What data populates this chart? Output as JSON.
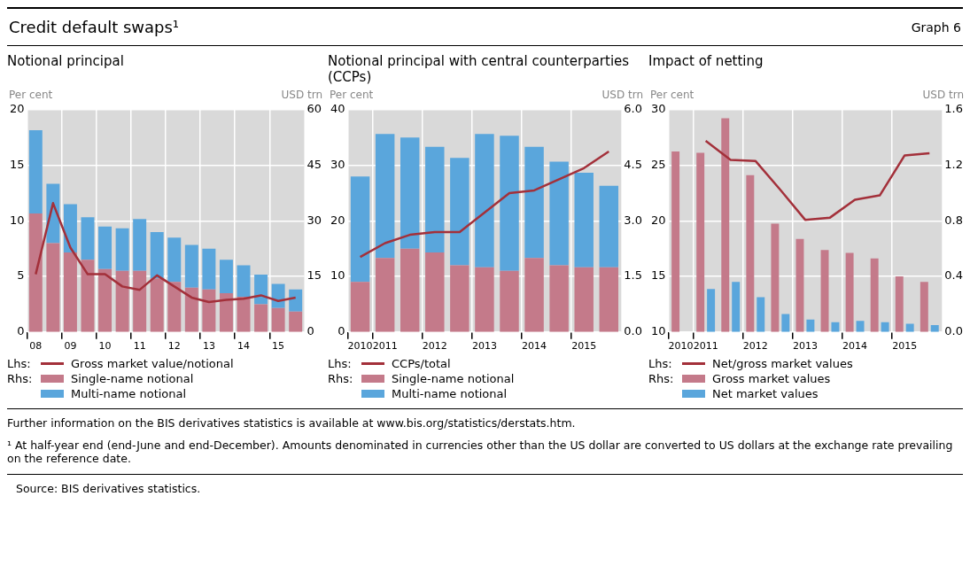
{
  "chart_data": [
    {
      "type": "other",
      "title": "Credit default swaps¹",
      "annotations": [
        "Graph 6"
      ]
    },
    {
      "type": "bar",
      "title": "Notional principal",
      "ylabel": "Per cent",
      "y2label": "USD trn",
      "stacked": true,
      "grid": true,
      "legend": "bottom",
      "annotations": [
        "Lhs:",
        "Rhs:"
      ],
      "categories": [
        "08",
        null,
        "09",
        null,
        "10",
        null,
        "11",
        null,
        "12",
        null,
        "13",
        null,
        "14",
        null,
        "15",
        null
      ],
      "ylim": [
        0,
        20
      ],
      "yticks": [
        0,
        5,
        10,
        15,
        20
      ],
      "y2lim": [
        0,
        60
      ],
      "y2ticks": [
        0,
        15,
        30,
        45,
        60
      ],
      "series": [
        {
          "name": "Gross market value/notional",
          "type": "line",
          "color": "#a3303a",
          "values": [
            5.2,
            11.6,
            7.6,
            5.2,
            5.2,
            4.1,
            3.8,
            5.1,
            4.1,
            3.1,
            2.7,
            2.9,
            3.0,
            3.3,
            2.8,
            3.1
          ]
        },
        {
          "name": "Single-name notional",
          "axis": "y2",
          "color": "#c47a8a",
          "values": [
            32,
            24,
            21.5,
            19.5,
            17,
            16.5,
            16.5,
            14.5,
            13.5,
            12,
            11.5,
            10.5,
            9.5,
            7.5,
            6.5,
            5.5
          ]
        },
        {
          "name": "Multi-name notional",
          "axis": "y2",
          "color": "#5aa6dc",
          "values": [
            22.5,
            16,
            13,
            11.5,
            11.5,
            11.5,
            14,
            12.5,
            12,
            11.5,
            11,
            9,
            8.5,
            8,
            6.5,
            6
          ]
        }
      ]
    },
    {
      "type": "bar",
      "title": "Notional principal with central counterparties (CCPs)",
      "ylabel": "Per cent",
      "y2label": "USD trn",
      "stacked": true,
      "grid": true,
      "legend": "bottom",
      "annotations": [
        "Lhs:",
        "Rhs:"
      ],
      "categories": [
        "2010",
        "2011",
        null,
        "2012",
        null,
        "2013",
        null,
        "2014",
        null,
        "2015",
        null
      ],
      "ylim": [
        0,
        40
      ],
      "yticks": [
        0,
        10,
        20,
        30,
        40
      ],
      "y2lim": [
        0,
        6
      ],
      "y2ticks": [
        {
          "value": 0,
          "label": "0.0"
        },
        {
          "value": 1.5,
          "label": "1.5"
        },
        {
          "value": 3,
          "label": "3.0"
        },
        {
          "value": 4.5,
          "label": "4.5"
        },
        {
          "value": 6,
          "label": "6.0"
        }
      ],
      "series": [
        {
          "name": "CCPs/total",
          "type": "line",
          "color": "#a3303a",
          "values": [
            13.5,
            16,
            17.5,
            18,
            18,
            21.5,
            25,
            25.5,
            27.5,
            29.5,
            32.5
          ]
        },
        {
          "name": "Single-name notional",
          "axis": "y2",
          "color": "#c47a8a",
          "values": [
            1.35,
            2.0,
            2.25,
            2.15,
            1.8,
            1.75,
            1.65,
            2.0,
            1.8,
            1.75,
            1.75
          ]
        },
        {
          "name": "Multi-name notional",
          "axis": "y2",
          "color": "#5aa6dc",
          "values": [
            2.85,
            3.35,
            3.0,
            2.85,
            2.9,
            3.6,
            3.65,
            3.0,
            2.8,
            2.55,
            2.2
          ]
        }
      ]
    },
    {
      "type": "bar",
      "title": "Impact of netting",
      "ylabel": "Per cent",
      "y2label": "USD trn",
      "grid": true,
      "legend": "bottom",
      "annotations": [
        "Lhs:",
        "Rhs:"
      ],
      "categories": [
        "2010",
        "2011",
        null,
        "2012",
        null,
        "2013",
        null,
        "2014",
        null,
        "2015",
        null
      ],
      "ylim": [
        10,
        30
      ],
      "yticks": [
        10,
        15,
        20,
        25,
        30
      ],
      "y2lim": [
        0,
        1.6
      ],
      "y2ticks": [
        {
          "value": 0,
          "label": "0.0"
        },
        {
          "value": 0.4,
          "label": "0.4"
        },
        {
          "value": 0.8,
          "label": "0.8"
        },
        {
          "value": 1.2,
          "label": "1.2"
        },
        {
          "value": 1.6,
          "label": "1.6"
        }
      ],
      "series": [
        {
          "name": "Net/gross market values",
          "type": "line",
          "color": "#a3303a",
          "values": [
            null,
            27.2,
            25.5,
            25.4,
            22.8,
            20.1,
            20.3,
            21.9,
            22.3,
            25.9,
            26.1
          ]
        },
        {
          "name": "Gross market values",
          "axis": "y2",
          "color": "#c47a8a",
          "values": [
            1.3,
            1.29,
            1.54,
            1.13,
            0.78,
            0.67,
            0.59,
            0.57,
            0.53,
            0.4,
            0.36
          ]
        },
        {
          "name": "Net market values",
          "axis": "y2",
          "color": "#5aa6dc",
          "values": [
            null,
            0.31,
            0.36,
            0.25,
            0.13,
            0.09,
            0.07,
            0.08,
            0.07,
            0.06,
            0.05
          ]
        }
      ]
    },
    {
      "type": "other",
      "annotations": [
        "Further information on the BIS derivatives statistics is available at www.bis.org/statistics/derstats.htm.",
        "¹ At half-year end (end-June and end-December). Amounts denominated in currencies other than the US dollar are converted to US dollars at the exchange rate prevailing on the reference date.",
        "Source: BIS derivatives statistics."
      ]
    }
  ]
}
